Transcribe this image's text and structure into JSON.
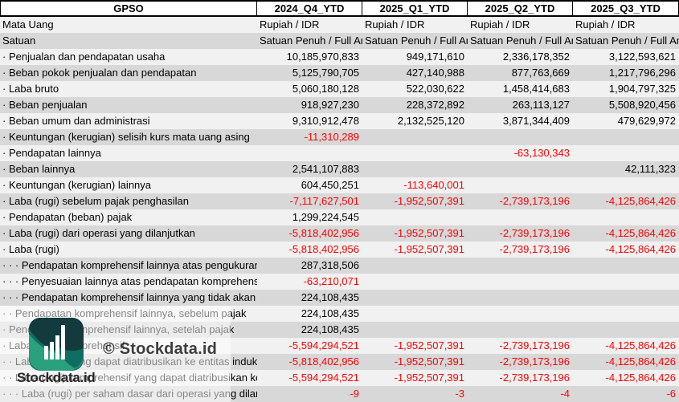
{
  "table": {
    "corner_label": "GPSO",
    "columns": [
      "2024_Q4_YTD",
      "2025_Q1_YTD",
      "2025_Q2_YTD",
      "2025_Q3_YTD"
    ],
    "meta_rows": [
      {
        "label": "Mata Uang",
        "dots": 0,
        "values": [
          "Rupiah / IDR",
          "Rupiah / IDR",
          "Rupiah / IDR",
          "Rupiah / IDR"
        ]
      },
      {
        "label": "Satuan",
        "dots": 0,
        "values": [
          "Satuan Penuh / Full Amount",
          "Satuan Penuh / Full Amount",
          "Satuan Penuh / Full Amount",
          "Satuan Penuh / Full Amount"
        ]
      }
    ],
    "rows": [
      {
        "dots": 1,
        "label": "Penjualan dan pendapatan usaha",
        "values": [
          "10,185,970,833",
          "949,171,610",
          "2,336,178,352",
          "3,122,593,621"
        ]
      },
      {
        "dots": 1,
        "label": "Beban pokok penjualan dan pendapatan",
        "values": [
          "5,125,790,705",
          "427,140,988",
          "877,763,669",
          "1,217,796,296"
        ]
      },
      {
        "dots": 1,
        "label": "Laba bruto",
        "values": [
          "5,060,180,128",
          "522,030,622",
          "1,458,414,683",
          "1,904,797,325"
        ]
      },
      {
        "dots": 1,
        "label": "Beban penjualan",
        "values": [
          "918,927,230",
          "228,372,892",
          "263,113,127",
          "5,508,920,456"
        ]
      },
      {
        "dots": 1,
        "label": "Beban umum dan administrasi",
        "values": [
          "9,310,912,478",
          "2,132,525,120",
          "3,871,344,409",
          "479,629,972"
        ]
      },
      {
        "dots": 1,
        "label": "Keuntungan (kerugian) selisih kurs mata uang asing",
        "values": [
          "-11,310,289",
          "",
          "",
          ""
        ]
      },
      {
        "dots": 1,
        "label": "Pendapatan lainnya",
        "values": [
          "",
          "",
          "-63,130,343",
          ""
        ]
      },
      {
        "dots": 1,
        "label": "Beban lainnya",
        "values": [
          "2,541,107,883",
          "",
          "",
          "42,111,323"
        ]
      },
      {
        "dots": 1,
        "label": "Keuntungan (kerugian) lainnya",
        "values": [
          "604,450,251",
          "-113,640,001",
          "",
          ""
        ]
      },
      {
        "dots": 1,
        "label": "Laba (rugi) sebelum pajak penghasilan",
        "values": [
          "-7,117,627,501",
          "-1,952,507,391",
          "-2,739,173,196",
          "-4,125,864,426"
        ]
      },
      {
        "dots": 1,
        "label": "Pendapatan (beban) pajak",
        "values": [
          "1,299,224,545",
          "",
          "",
          ""
        ]
      },
      {
        "dots": 1,
        "label": "Laba (rugi) dari operasi yang dilanjutkan",
        "values": [
          "-5,818,402,956",
          "-1,952,507,391",
          "-2,739,173,196",
          "-4,125,864,426"
        ]
      },
      {
        "dots": 1,
        "label": "Laba (rugi)",
        "values": [
          "-5,818,402,956",
          "-1,952,507,391",
          "-2,739,173,196",
          "-4,125,864,426"
        ]
      },
      {
        "dots": 3,
        "label": "Pendapatan komprehensif lainnya atas pengukuran kembali program imbalan pasti",
        "values": [
          "287,318,506",
          "",
          "",
          ""
        ]
      },
      {
        "dots": 3,
        "label": "Penyesuaian lainnya atas pendapatan komprehensif lainnya",
        "values": [
          "-63,210,071",
          "",
          "",
          ""
        ]
      },
      {
        "dots": 3,
        "label": "Pendapatan komprehensif lainnya yang tidak akan direklasifikasi ke laba rugi",
        "values": [
          "224,108,435",
          "",
          "",
          ""
        ]
      },
      {
        "dots": 2,
        "label": "Pendapatan komprehensif lainnya, sebelum pajak",
        "values": [
          "224,108,435",
          "",
          "",
          ""
        ]
      },
      {
        "dots": 1,
        "label": "Pendapatan komprehensif lainnya, setelah pajak",
        "values": [
          "224,108,435",
          "",
          "",
          ""
        ]
      },
      {
        "dots": 1,
        "label": "Laba (rugi) komprehensif",
        "values": [
          "-5,594,294,521",
          "-1,952,507,391",
          "-2,739,173,196",
          "-4,125,864,426"
        ]
      },
      {
        "dots": 2,
        "label": "Laba (rugi) yang dapat diatribusikan ke entitas induk",
        "values": [
          "-5,818,402,956",
          "-1,952,507,391",
          "-2,739,173,196",
          "-4,125,864,426"
        ]
      },
      {
        "dots": 2,
        "label": "Laba (rugi) komprehensif yang dapat diatribusikan ke entitas induk",
        "values": [
          "-5,594,294,521",
          "-1,952,507,391",
          "-2,739,173,196",
          "-4,125,864,426"
        ]
      },
      {
        "dots": 3,
        "label": "Laba (rugi) per saham dasar dari operasi yang dilanjutkan",
        "values": [
          "-9",
          "-3",
          "-4",
          "-6"
        ]
      }
    ]
  },
  "watermark": {
    "copyright": "© Stockdata.id",
    "wordmark": "Stockdata.id"
  },
  "colors": {
    "negative_value": "#ff0000",
    "band_light": "#f1f1f1",
    "band_dark": "#d8d8d8",
    "logo_dark_teal": "#133a3c",
    "logo_teal": "#0e6e62",
    "logo_green": "#2aa17c"
  }
}
